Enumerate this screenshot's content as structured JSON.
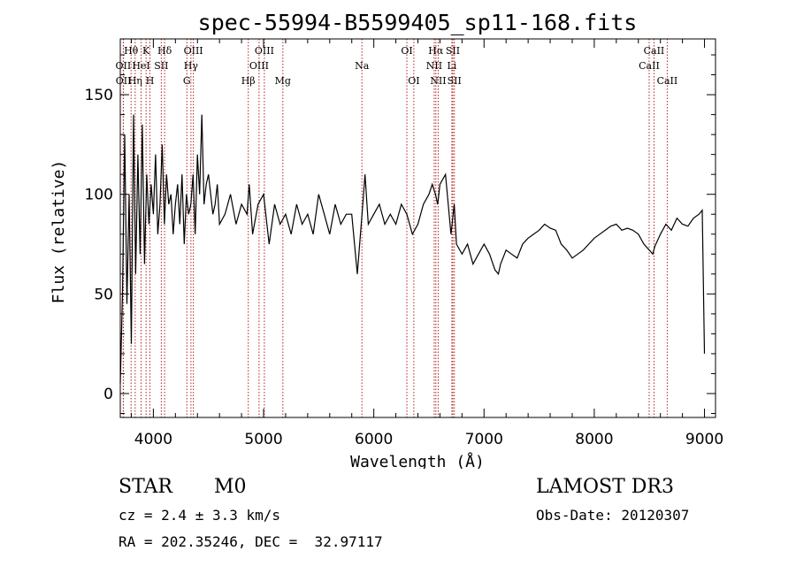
{
  "chart_data": {
    "type": "line",
    "title": "spec-55994-B5599405_sp11-168.fits",
    "xlabel": "Wavelength (Å)",
    "ylabel": "Flux (relative)",
    "xlim": [
      3700,
      9100
    ],
    "ylim": [
      -12,
      178
    ],
    "x_ticks": [
      4000,
      5000,
      6000,
      7000,
      8000,
      9000
    ],
    "y_ticks": [
      0,
      50,
      100,
      150
    ],
    "grid": false,
    "series": [
      {
        "name": "spectrum",
        "x": [
          3700,
          3720,
          3740,
          3760,
          3780,
          3800,
          3820,
          3840,
          3860,
          3880,
          3900,
          3920,
          3940,
          3960,
          3980,
          4000,
          4020,
          4040,
          4060,
          4080,
          4100,
          4120,
          4140,
          4160,
          4180,
          4200,
          4220,
          4240,
          4260,
          4280,
          4300,
          4320,
          4340,
          4360,
          4380,
          4400,
          4420,
          4440,
          4460,
          4480,
          4500,
          4520,
          4540,
          4560,
          4580,
          4600,
          4650,
          4700,
          4750,
          4800,
          4850,
          4870,
          4900,
          4950,
          5000,
          5050,
          5100,
          5150,
          5200,
          5250,
          5300,
          5350,
          5400,
          5450,
          5500,
          5550,
          5600,
          5650,
          5700,
          5750,
          5800,
          5850,
          5900,
          5920,
          5950,
          6000,
          6050,
          6100,
          6150,
          6200,
          6250,
          6300,
          6350,
          6400,
          6450,
          6500,
          6530,
          6560,
          6580,
          6600,
          6650,
          6700,
          6730,
          6750,
          6800,
          6850,
          6900,
          6950,
          7000,
          7050,
          7100,
          7130,
          7150,
          7200,
          7250,
          7300,
          7350,
          7400,
          7450,
          7500,
          7550,
          7600,
          7650,
          7700,
          7750,
          7800,
          7850,
          7900,
          7950,
          8000,
          8050,
          8100,
          8150,
          8200,
          8250,
          8300,
          8350,
          8400,
          8450,
          8500,
          8530,
          8550,
          8600,
          8650,
          8700,
          8750,
          8800,
          8850,
          8900,
          8950,
          8980,
          9000
        ],
        "values": [
          5,
          50,
          130,
          45,
          100,
          25,
          140,
          60,
          120,
          70,
          135,
          65,
          110,
          85,
          105,
          90,
          120,
          80,
          95,
          125,
          85,
          110,
          95,
          100,
          80,
          95,
          105,
          85,
          110,
          75,
          100,
          90,
          95,
          110,
          80,
          120,
          100,
          140,
          95,
          105,
          110,
          100,
          90,
          95,
          105,
          85,
          90,
          100,
          85,
          95,
          90,
          105,
          80,
          95,
          100,
          75,
          95,
          85,
          90,
          80,
          95,
          85,
          90,
          80,
          100,
          90,
          80,
          95,
          85,
          90,
          90,
          60,
          95,
          110,
          85,
          90,
          95,
          85,
          90,
          85,
          95,
          90,
          80,
          85,
          95,
          100,
          105,
          100,
          95,
          105,
          110,
          80,
          95,
          75,
          70,
          75,
          65,
          70,
          75,
          70,
          62,
          60,
          65,
          72,
          70,
          68,
          75,
          78,
          80,
          82,
          85,
          83,
          82,
          75,
          72,
          68,
          70,
          72,
          75,
          78,
          80,
          82,
          84,
          85,
          82,
          83,
          82,
          80,
          75,
          72,
          70,
          74,
          80,
          85,
          82,
          88,
          85,
          84,
          88,
          90,
          92,
          20
        ]
      }
    ],
    "line_markers": [
      {
        "label": "Hθ",
        "wavelength": 3798,
        "row": 1
      },
      {
        "label": "OII",
        "wavelength": 3727,
        "row": 2
      },
      {
        "label": "OII",
        "wavelength": 3729,
        "row": 3
      },
      {
        "label": "Hη",
        "wavelength": 3835,
        "row": 3
      },
      {
        "label": "HeI",
        "wavelength": 3889,
        "row": 2
      },
      {
        "label": "K",
        "wavelength": 3934,
        "row": 1
      },
      {
        "label": "H",
        "wavelength": 3969,
        "row": 3
      },
      {
        "label": "SII",
        "wavelength": 4072,
        "row": 2
      },
      {
        "label": "Hδ",
        "wavelength": 4102,
        "row": 1
      },
      {
        "label": "OIII",
        "wavelength": 4363,
        "row": 1
      },
      {
        "label": "Hγ",
        "wavelength": 4341,
        "row": 2
      },
      {
        "label": "G",
        "wavelength": 4304,
        "row": 3
      },
      {
        "label": "Hβ",
        "wavelength": 4861,
        "row": 3
      },
      {
        "label": "OIII",
        "wavelength": 4959,
        "row": 2
      },
      {
        "label": "OIII",
        "wavelength": 5007,
        "row": 1
      },
      {
        "label": "Mg",
        "wavelength": 5175,
        "row": 3
      },
      {
        "label": "Na",
        "wavelength": 5892,
        "row": 2
      },
      {
        "label": "OI",
        "wavelength": 6300,
        "row": 1
      },
      {
        "label": "OI",
        "wavelength": 6363,
        "row": 3
      },
      {
        "label": "Hα",
        "wavelength": 6563,
        "row": 1
      },
      {
        "label": "NII",
        "wavelength": 6548,
        "row": 2
      },
      {
        "label": "NII",
        "wavelength": 6584,
        "row": 3
      },
      {
        "label": "SII",
        "wavelength": 6717,
        "row": 1
      },
      {
        "label": "Li",
        "wavelength": 6708,
        "row": 2
      },
      {
        "label": "SII",
        "wavelength": 6731,
        "row": 3
      },
      {
        "label": "CaII",
        "wavelength": 8498,
        "row": 2
      },
      {
        "label": "CaII",
        "wavelength": 8542,
        "row": 1
      },
      {
        "label": "CaII",
        "wavelength": 8662,
        "row": 3
      }
    ]
  },
  "info": {
    "object_class": "STAR",
    "subclass": "M0",
    "survey": "LAMOST DR3",
    "cz": "cz = 2.4 ± 3.3 km/s",
    "obs_date": "Obs-Date: 20120307",
    "radec": "RA = 202.35246, DEC =  32.97117"
  },
  "colors": {
    "line_marker": "#b22222",
    "spectrum": "#000000"
  }
}
